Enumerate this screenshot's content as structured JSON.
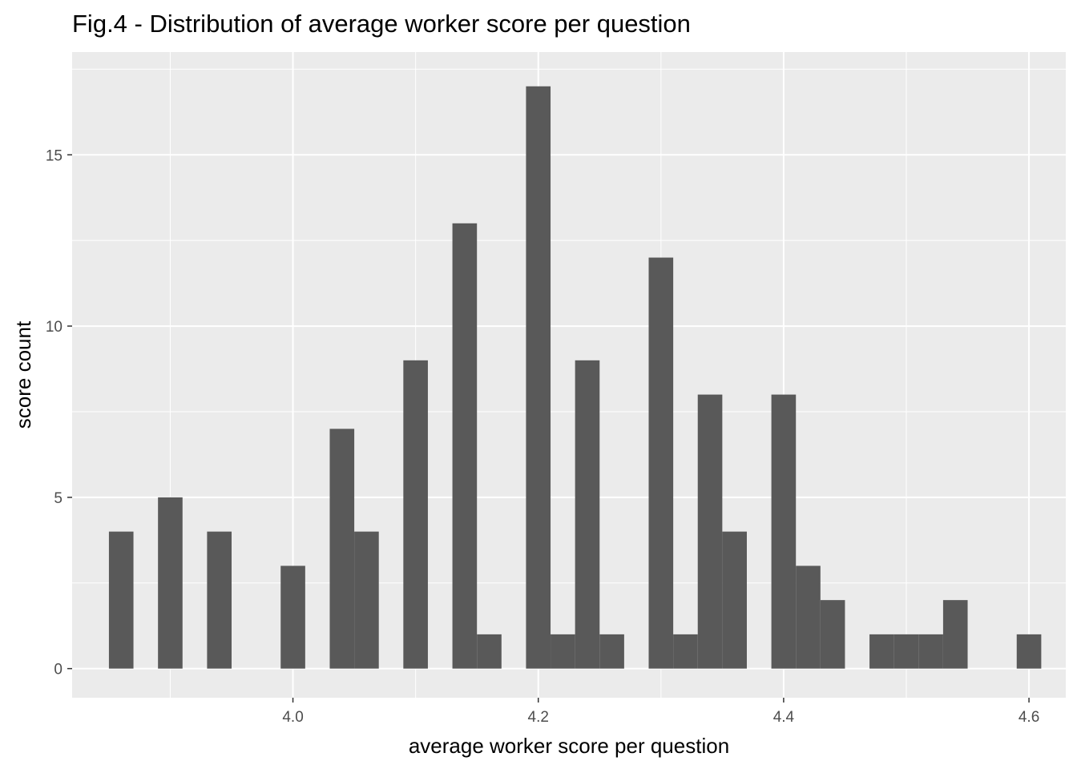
{
  "chart_data": {
    "type": "bar",
    "title": "Fig.4 - Distribution of average worker score per question",
    "xlabel": "average worker score per question",
    "ylabel": "score count",
    "xlim": [
      3.82,
      4.63
    ],
    "ylim": [
      -0.85,
      18.0
    ],
    "x_ticks": [
      4.0,
      4.2,
      4.4,
      4.6
    ],
    "x_tick_labels": [
      "4.0",
      "4.2",
      "4.4",
      "4.6"
    ],
    "y_ticks": [
      0,
      5,
      10,
      15
    ],
    "y_tick_labels": [
      "0",
      "5",
      "10",
      "15"
    ],
    "bin_width": 0.02,
    "x": [
      3.86,
      3.9,
      3.94,
      4.0,
      4.04,
      4.06,
      4.1,
      4.14,
      4.16,
      4.2,
      4.22,
      4.24,
      4.26,
      4.3,
      4.32,
      4.34,
      4.36,
      4.4,
      4.42,
      4.44,
      4.48,
      4.5,
      4.52,
      4.54,
      4.6
    ],
    "values": [
      4,
      5,
      4,
      3,
      7,
      4,
      9,
      13,
      1,
      17,
      1,
      9,
      1,
      12,
      1,
      8,
      4,
      8,
      3,
      2,
      1,
      1,
      1,
      2,
      1
    ],
    "grid": true,
    "colors": {
      "bar": "#595959",
      "panel": "#ebebeb",
      "grid": "#ffffff",
      "tick": "#333333"
    }
  }
}
